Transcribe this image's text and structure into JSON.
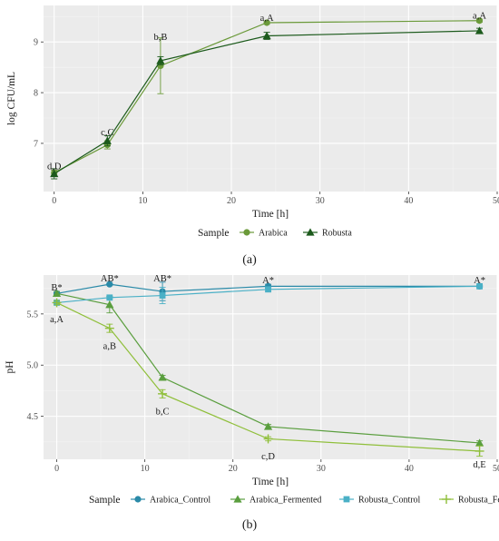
{
  "chart_data": [
    {
      "type": "line",
      "caption": "(a)",
      "xlabel": "Time [h]",
      "ylabel": "log CFU/mL",
      "xlim": [
        -1.2,
        50
      ],
      "ylim": [
        6.05,
        9.72
      ],
      "xticks": [
        0,
        10,
        20,
        30,
        40,
        50
      ],
      "yticks": [
        7,
        8,
        9
      ],
      "grid": true,
      "legend": {
        "title": "Sample",
        "position": "bottom"
      },
      "series": [
        {
          "name": "Arabica",
          "color": "#6b9a3a",
          "marker": "circle",
          "x": [
            0,
            6,
            12,
            24,
            48
          ],
          "y": [
            6.42,
            6.97,
            8.53,
            9.38,
            9.42
          ],
          "err": [
            0.05,
            0.08,
            0.55,
            0.03,
            0.03
          ]
        },
        {
          "name": "Robusta",
          "color": "#1c5a1c",
          "marker": "triangle",
          "x": [
            0,
            6,
            12,
            24,
            48
          ],
          "y": [
            6.4,
            7.05,
            8.63,
            9.12,
            9.22
          ],
          "err": [
            0.1,
            0.1,
            0.08,
            0.07,
            0.05
          ]
        }
      ],
      "annotations": [
        {
          "x": 0,
          "y": 6.55,
          "text": "d,D"
        },
        {
          "x": 6,
          "y": 7.22,
          "text": "c,C"
        },
        {
          "x": 12,
          "y": 9.1,
          "text": "b,B"
        },
        {
          "x": 24,
          "y": 9.48,
          "text": "a,A"
        },
        {
          "x": 48,
          "y": 9.52,
          "text": "a,A"
        }
      ]
    },
    {
      "type": "line",
      "caption": "(b)",
      "xlabel": "Time [h]",
      "ylabel": "pH",
      "xlim": [
        -1.5,
        50
      ],
      "ylim": [
        4.08,
        5.88
      ],
      "xticks": [
        0,
        10,
        20,
        30,
        40,
        50
      ],
      "yticks": [
        4.5,
        5.0,
        5.5
      ],
      "ytick_labels": [
        "4.5",
        "5.0",
        "5.5"
      ],
      "grid": true,
      "legend": {
        "title": "Sample",
        "position": "bottom"
      },
      "series": [
        {
          "name": "Arabica_Control",
          "color": "#2a8aa8",
          "marker": "circle",
          "x": [
            0,
            6,
            12,
            24,
            48
          ],
          "y": [
            5.7,
            5.79,
            5.72,
            5.77,
            5.77
          ],
          "err": [
            0.01,
            0.01,
            0.09,
            0.02,
            0.01
          ]
        },
        {
          "name": "Arabica_Fermented",
          "color": "#5a9e3e",
          "marker": "triangle",
          "x": [
            0,
            6,
            12,
            24,
            48
          ],
          "y": [
            5.7,
            5.59,
            4.88,
            4.4,
            4.24
          ],
          "err": [
            0.02,
            0.08,
            0.02,
            0.02,
            0.02
          ]
        },
        {
          "name": "Robusta_Control",
          "color": "#4ab0c6",
          "marker": "square",
          "x": [
            0,
            6,
            12,
            24,
            48
          ],
          "y": [
            5.61,
            5.66,
            5.68,
            5.74,
            5.77
          ],
          "err": [
            0.01,
            0.01,
            0.08,
            0.02,
            0.01
          ]
        },
        {
          "name": "Robusta_Fermented",
          "color": "#8fbf3a",
          "marker": "cross",
          "x": [
            0,
            6,
            12,
            24,
            48
          ],
          "y": [
            5.61,
            5.36,
            4.72,
            4.28,
            4.16
          ],
          "err": [
            0.02,
            0.04,
            0.04,
            0.02,
            0.05
          ]
        }
      ],
      "annotations": [
        {
          "x": 0,
          "y": 5.76,
          "text": "B*"
        },
        {
          "x": 6,
          "y": 5.85,
          "text": "AB*"
        },
        {
          "x": 12,
          "y": 5.85,
          "text": "AB*"
        },
        {
          "x": 24,
          "y": 5.83,
          "text": "A*"
        },
        {
          "x": 48,
          "y": 5.83,
          "text": "A*"
        },
        {
          "x": 0,
          "y": 5.45,
          "text": "a,A"
        },
        {
          "x": 6,
          "y": 5.19,
          "text": "a,B"
        },
        {
          "x": 12,
          "y": 4.55,
          "text": "b,C"
        },
        {
          "x": 24,
          "y": 4.11,
          "text": "c,D"
        },
        {
          "x": 48,
          "y": 4.03,
          "text": "d,E"
        }
      ]
    }
  ]
}
